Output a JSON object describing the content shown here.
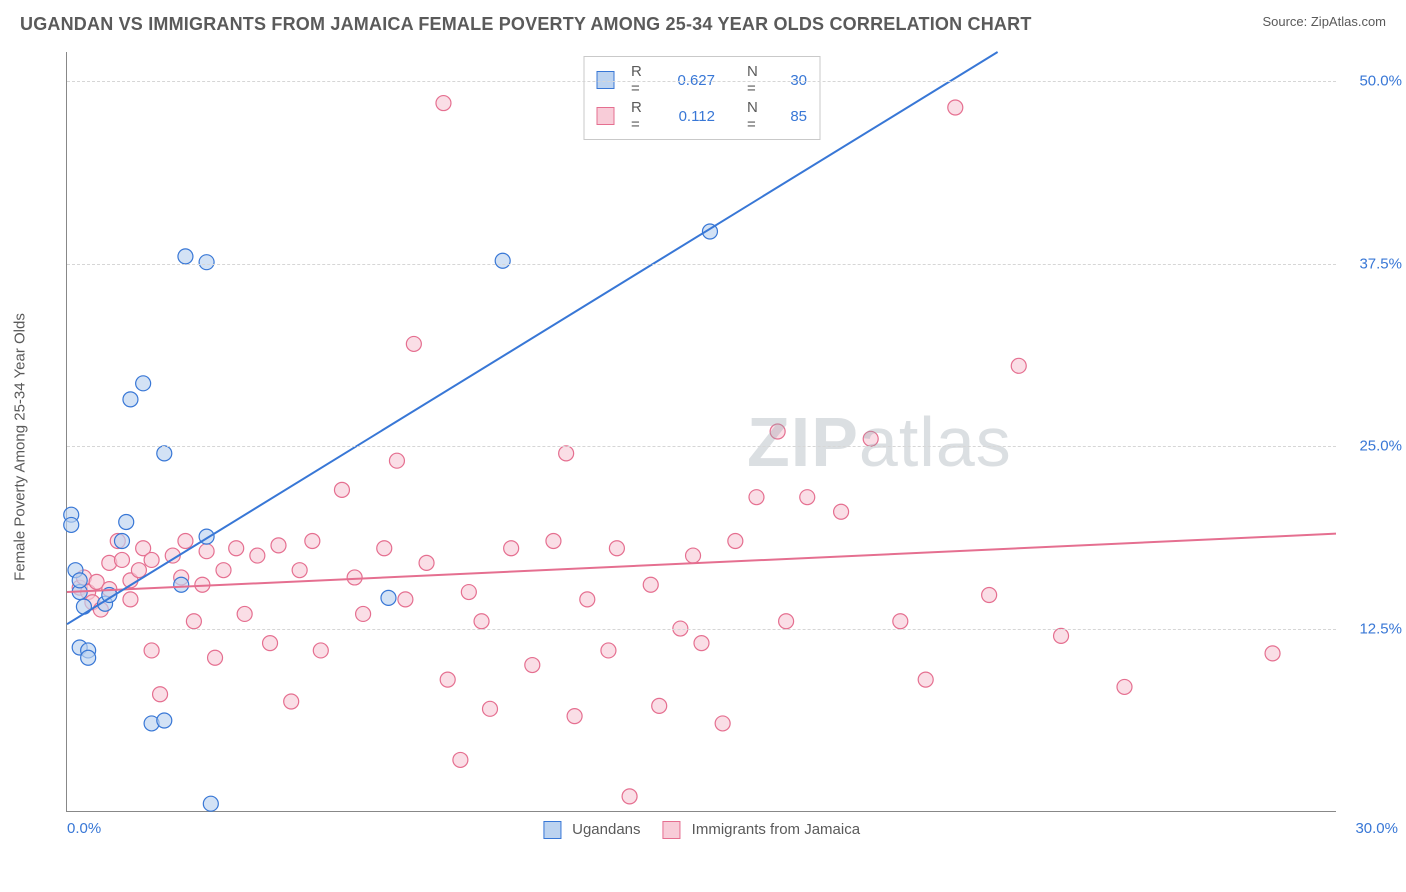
{
  "header": {
    "title": "UGANDAN VS IMMIGRANTS FROM JAMAICA FEMALE POVERTY AMONG 25-34 YEAR OLDS CORRELATION CHART",
    "source": "Source: ZipAtlas.com"
  },
  "ylabel": "Female Poverty Among 25-34 Year Olds",
  "watermark": {
    "bold": "ZIP",
    "rest": "atlas"
  },
  "chart": {
    "type": "scatter",
    "background_color": "#ffffff",
    "grid_color": "#d6d6d6",
    "axis_color": "#888888",
    "text_color": "#5a5a5a",
    "tick_color": "#3877d6",
    "xlim": [
      0,
      30
    ],
    "ylim": [
      0,
      52
    ],
    "xticks": [
      {
        "v": 0,
        "label": "0.0%"
      },
      {
        "v": 30,
        "label": "30.0%"
      }
    ],
    "yticks": [
      {
        "v": 12.5,
        "label": "12.5%"
      },
      {
        "v": 25.0,
        "label": "25.0%"
      },
      {
        "v": 37.5,
        "label": "37.5%"
      },
      {
        "v": 50.0,
        "label": "50.0%"
      }
    ],
    "marker_radius": 7.5,
    "marker_stroke_width": 1.2,
    "line_width": 2,
    "series": [
      {
        "id": "ugandans",
        "label": "Ugandans",
        "color_stroke": "#3877d6",
        "color_fill": "#bcd3f0",
        "R": "0.627",
        "N": "30",
        "trend": {
          "x1": 0,
          "y1": 12.8,
          "x2": 22,
          "y2": 52
        },
        "points": [
          [
            0.1,
            20.3
          ],
          [
            0.1,
            19.6
          ],
          [
            0.2,
            16.5
          ],
          [
            0.3,
            15.0
          ],
          [
            0.3,
            15.8
          ],
          [
            0.4,
            14.0
          ],
          [
            0.3,
            11.2
          ],
          [
            0.5,
            11.0
          ],
          [
            0.5,
            10.5
          ],
          [
            0.9,
            14.2
          ],
          [
            1.0,
            14.8
          ],
          [
            1.4,
            19.8
          ],
          [
            1.3,
            18.5
          ],
          [
            1.8,
            29.3
          ],
          [
            1.5,
            28.2
          ],
          [
            2.3,
            24.5
          ],
          [
            2.0,
            6.0
          ],
          [
            2.3,
            6.2
          ],
          [
            2.7,
            15.5
          ],
          [
            2.8,
            38.0
          ],
          [
            3.3,
            37.6
          ],
          [
            3.3,
            18.8
          ],
          [
            3.4,
            0.5
          ],
          [
            7.6,
            14.6
          ],
          [
            10.3,
            37.7
          ],
          [
            15.2,
            39.7
          ]
        ]
      },
      {
        "id": "jamaica",
        "label": "Immigrants from Jamaica",
        "color_stroke": "#e56f90",
        "color_fill": "#f8ccd8",
        "R": "0.112",
        "N": "85",
        "trend": {
          "x1": 0,
          "y1": 15.0,
          "x2": 30,
          "y2": 19.0
        },
        "points": [
          [
            0.3,
            15.3
          ],
          [
            0.4,
            16.0
          ],
          [
            0.5,
            15.0
          ],
          [
            0.6,
            14.3
          ],
          [
            0.7,
            15.7
          ],
          [
            0.8,
            13.8
          ],
          [
            1.0,
            17.0
          ],
          [
            1.0,
            15.2
          ],
          [
            1.2,
            18.5
          ],
          [
            1.3,
            17.2
          ],
          [
            1.5,
            14.5
          ],
          [
            1.5,
            15.8
          ],
          [
            1.7,
            16.5
          ],
          [
            1.8,
            18.0
          ],
          [
            2.0,
            17.2
          ],
          [
            2.0,
            11.0
          ],
          [
            2.2,
            8.0
          ],
          [
            2.5,
            17.5
          ],
          [
            2.7,
            16.0
          ],
          [
            2.8,
            18.5
          ],
          [
            3.0,
            13.0
          ],
          [
            3.2,
            15.5
          ],
          [
            3.3,
            17.8
          ],
          [
            3.5,
            10.5
          ],
          [
            3.7,
            16.5
          ],
          [
            4.0,
            18.0
          ],
          [
            4.2,
            13.5
          ],
          [
            4.5,
            17.5
          ],
          [
            4.8,
            11.5
          ],
          [
            5.0,
            18.2
          ],
          [
            5.3,
            7.5
          ],
          [
            5.5,
            16.5
          ],
          [
            5.8,
            18.5
          ],
          [
            6.0,
            11.0
          ],
          [
            6.5,
            22.0
          ],
          [
            6.8,
            16.0
          ],
          [
            7.0,
            13.5
          ],
          [
            7.5,
            18.0
          ],
          [
            7.8,
            24.0
          ],
          [
            8.0,
            14.5
          ],
          [
            8.2,
            32.0
          ],
          [
            8.5,
            17.0
          ],
          [
            8.9,
            48.5
          ],
          [
            9.0,
            9.0
          ],
          [
            9.3,
            3.5
          ],
          [
            9.5,
            15.0
          ],
          [
            9.8,
            13.0
          ],
          [
            10.0,
            7.0
          ],
          [
            10.5,
            18.0
          ],
          [
            11.0,
            10.0
          ],
          [
            11.5,
            18.5
          ],
          [
            11.8,
            24.5
          ],
          [
            12.0,
            6.5
          ],
          [
            12.3,
            14.5
          ],
          [
            12.8,
            11.0
          ],
          [
            13.0,
            18.0
          ],
          [
            13.3,
            1.0
          ],
          [
            13.8,
            15.5
          ],
          [
            14.0,
            7.2
          ],
          [
            14.5,
            12.5
          ],
          [
            14.8,
            17.5
          ],
          [
            15.0,
            11.5
          ],
          [
            15.5,
            6.0
          ],
          [
            15.8,
            18.5
          ],
          [
            16.3,
            21.5
          ],
          [
            16.8,
            26.0
          ],
          [
            17.0,
            13.0
          ],
          [
            17.5,
            21.5
          ],
          [
            18.3,
            20.5
          ],
          [
            19.0,
            25.5
          ],
          [
            19.7,
            13.0
          ],
          [
            20.3,
            9.0
          ],
          [
            21.0,
            48.2
          ],
          [
            21.8,
            14.8
          ],
          [
            22.5,
            30.5
          ],
          [
            23.5,
            12.0
          ],
          [
            25.0,
            8.5
          ],
          [
            28.5,
            10.8
          ]
        ]
      }
    ]
  }
}
